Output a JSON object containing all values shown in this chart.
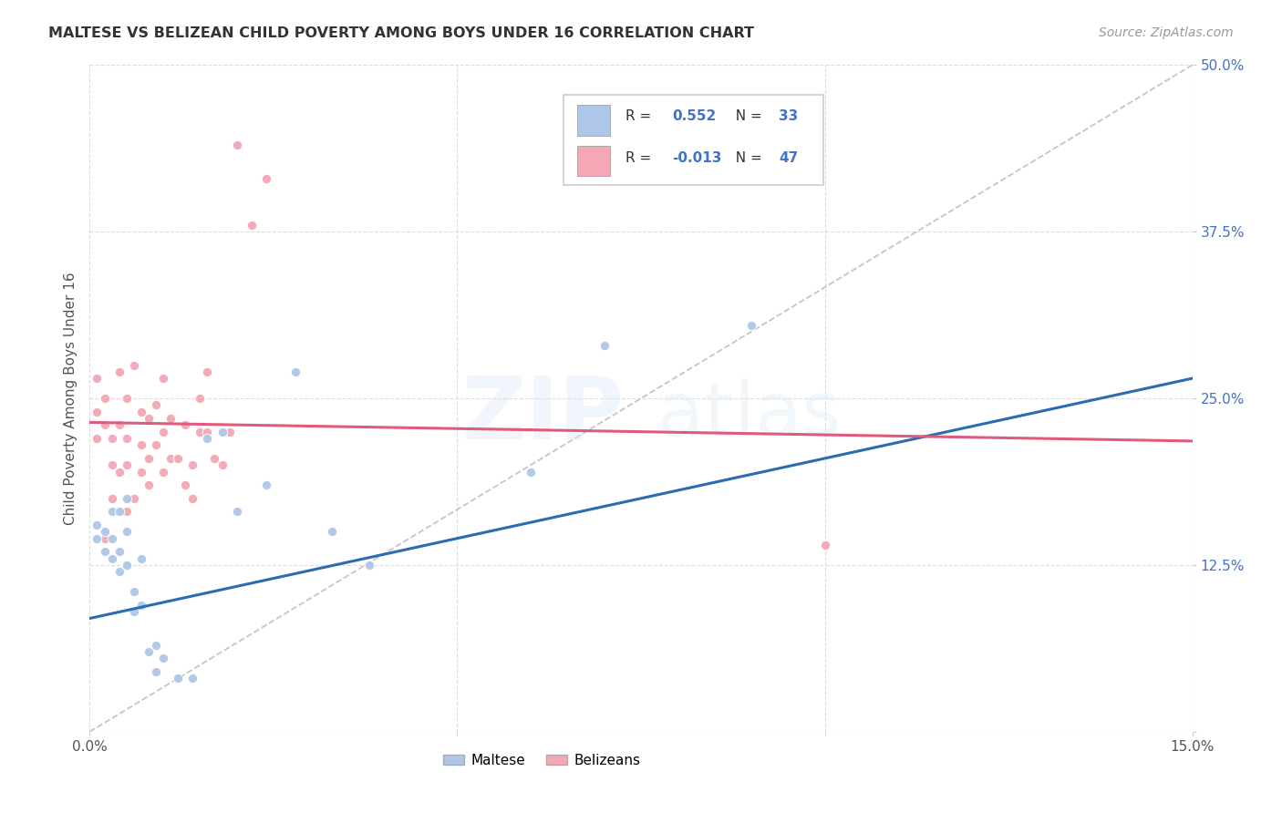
{
  "title": "MALTESE VS BELIZEAN CHILD POVERTY AMONG BOYS UNDER 16 CORRELATION CHART",
  "source": "Source: ZipAtlas.com",
  "ylabel": "Child Poverty Among Boys Under 16",
  "xlim": [
    0,
    0.15
  ],
  "ylim": [
    0,
    0.5
  ],
  "maltese_color": "#aec6e8",
  "belizean_color": "#f4a7b4",
  "maltese_line_color": "#2b6cb0",
  "belizean_line_color": "#e05a7a",
  "diagonal_line_color": "#bbbbbb",
  "background_color": "#ffffff",
  "grid_color": "#dddddd",
  "blue_text": "#4472c4",
  "legend_R_maltese": "0.552",
  "legend_N_maltese": "33",
  "legend_R_belizean": "-0.013",
  "legend_N_belizean": "47",
  "maltese_x": [
    0.001,
    0.001,
    0.002,
    0.002,
    0.003,
    0.003,
    0.003,
    0.004,
    0.004,
    0.004,
    0.005,
    0.005,
    0.005,
    0.006,
    0.006,
    0.007,
    0.007,
    0.008,
    0.009,
    0.009,
    0.01,
    0.012,
    0.014,
    0.016,
    0.018,
    0.02,
    0.024,
    0.028,
    0.033,
    0.038,
    0.06,
    0.07,
    0.09
  ],
  "maltese_y": [
    0.145,
    0.155,
    0.135,
    0.15,
    0.13,
    0.145,
    0.165,
    0.12,
    0.135,
    0.165,
    0.125,
    0.15,
    0.175,
    0.09,
    0.105,
    0.095,
    0.13,
    0.06,
    0.045,
    0.065,
    0.055,
    0.04,
    0.04,
    0.22,
    0.225,
    0.165,
    0.185,
    0.27,
    0.15,
    0.125,
    0.195,
    0.29,
    0.305
  ],
  "belizean_x": [
    0.001,
    0.001,
    0.001,
    0.002,
    0.002,
    0.002,
    0.003,
    0.003,
    0.003,
    0.004,
    0.004,
    0.004,
    0.005,
    0.005,
    0.005,
    0.005,
    0.006,
    0.006,
    0.007,
    0.007,
    0.007,
    0.008,
    0.008,
    0.008,
    0.009,
    0.009,
    0.01,
    0.01,
    0.01,
    0.011,
    0.011,
    0.012,
    0.013,
    0.013,
    0.014,
    0.014,
    0.015,
    0.015,
    0.016,
    0.016,
    0.017,
    0.018,
    0.019,
    0.02,
    0.022,
    0.024,
    0.1
  ],
  "belizean_y": [
    0.22,
    0.24,
    0.265,
    0.23,
    0.25,
    0.145,
    0.2,
    0.22,
    0.175,
    0.195,
    0.23,
    0.27,
    0.165,
    0.2,
    0.22,
    0.25,
    0.175,
    0.275,
    0.195,
    0.215,
    0.24,
    0.185,
    0.205,
    0.235,
    0.215,
    0.245,
    0.225,
    0.265,
    0.195,
    0.205,
    0.235,
    0.205,
    0.185,
    0.23,
    0.175,
    0.2,
    0.225,
    0.25,
    0.225,
    0.27,
    0.205,
    0.2,
    0.225,
    0.44,
    0.38,
    0.415,
    0.14
  ],
  "marker_size": 55,
  "xtick_positions": [
    0.0,
    0.05,
    0.1,
    0.15
  ],
  "ytick_positions": [
    0.0,
    0.125,
    0.25,
    0.375,
    0.5
  ],
  "ytick_labels": [
    "",
    "12.5%",
    "25.0%",
    "37.5%",
    "50.0%"
  ]
}
